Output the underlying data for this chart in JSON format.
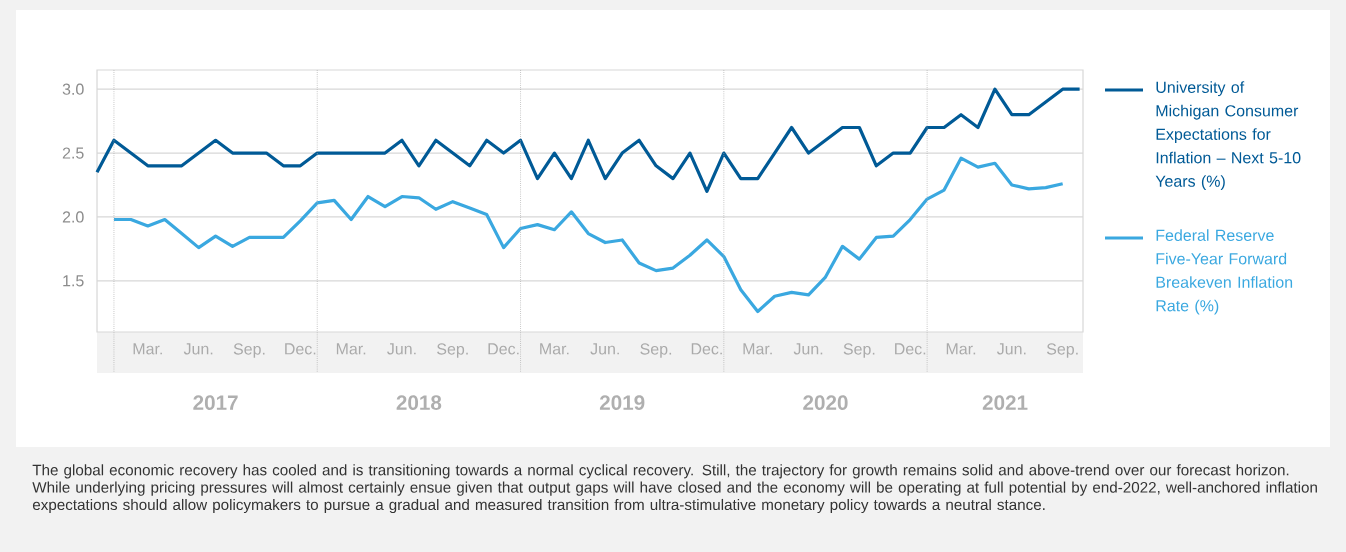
{
  "chart_data": {
    "type": "line",
    "x": [
      "2016-12",
      "2017-01",
      "2017-02",
      "2017-03",
      "2017-04",
      "2017-05",
      "2017-06",
      "2017-07",
      "2017-08",
      "2017-09",
      "2017-10",
      "2017-11",
      "2017-12",
      "2018-01",
      "2018-02",
      "2018-03",
      "2018-04",
      "2018-05",
      "2018-06",
      "2018-07",
      "2018-08",
      "2018-09",
      "2018-10",
      "2018-11",
      "2018-12",
      "2019-01",
      "2019-02",
      "2019-03",
      "2019-04",
      "2019-05",
      "2019-06",
      "2019-07",
      "2019-08",
      "2019-09",
      "2019-10",
      "2019-11",
      "2019-12",
      "2020-01",
      "2020-02",
      "2020-03",
      "2020-04",
      "2020-05",
      "2020-06",
      "2020-07",
      "2020-08",
      "2020-09",
      "2020-10",
      "2020-11",
      "2020-12",
      "2021-01",
      "2021-02",
      "2021-03",
      "2021-04",
      "2021-05",
      "2021-06",
      "2021-07",
      "2021-08",
      "2021-09",
      "2021-10"
    ],
    "series": [
      {
        "name": "University of Michigan Consumer Expectations for Inflation – Next 5-10 Years (%)",
        "color": "#005a96",
        "values": [
          2.35,
          2.6,
          2.5,
          2.4,
          2.4,
          2.4,
          2.5,
          2.6,
          2.5,
          2.5,
          2.5,
          2.4,
          2.4,
          2.5,
          2.5,
          2.5,
          2.5,
          2.5,
          2.6,
          2.4,
          2.6,
          2.5,
          2.4,
          2.6,
          2.5,
          2.6,
          2.3,
          2.5,
          2.3,
          2.6,
          2.3,
          2.5,
          2.6,
          2.4,
          2.3,
          2.5,
          2.2,
          2.5,
          2.3,
          2.3,
          2.5,
          2.7,
          2.5,
          2.6,
          2.7,
          2.7,
          2.4,
          2.5,
          2.5,
          2.7,
          2.7,
          2.8,
          2.7,
          3.0,
          2.8,
          2.8,
          2.9,
          3.0,
          3.0
        ]
      },
      {
        "name": "Federal Reserve Five-Year Forward Breakeven Inflation Rate (%)",
        "color": "#3aa8e0",
        "values": [
          null,
          1.98,
          1.98,
          1.93,
          1.98,
          1.87,
          1.76,
          1.85,
          1.77,
          1.84,
          1.84,
          1.84,
          1.97,
          2.11,
          2.13,
          1.98,
          2.16,
          2.08,
          2.16,
          2.15,
          2.06,
          2.12,
          2.07,
          2.02,
          1.76,
          1.91,
          1.94,
          1.9,
          2.04,
          1.87,
          1.8,
          1.82,
          1.64,
          1.58,
          1.6,
          1.7,
          1.82,
          1.69,
          1.43,
          1.26,
          1.38,
          1.41,
          1.39,
          1.53,
          1.77,
          1.67,
          1.84,
          1.85,
          1.98,
          2.14,
          2.21,
          2.46,
          2.39,
          2.42,
          2.25,
          2.22,
          2.23,
          2.26,
          null
        ]
      }
    ],
    "xlim": [
      "2016-12",
      "2021-10"
    ],
    "xticks": [
      {
        "value": "2017-01",
        "label": null
      },
      {
        "value": "2017-03",
        "label": "Mar."
      },
      {
        "value": "2017-06",
        "label": "Jun."
      },
      {
        "value": "2017-09",
        "label": "Sep."
      },
      {
        "value": "2017-12",
        "label": "Dec."
      },
      {
        "value": "2018-01",
        "label": null
      },
      {
        "value": "2018-03",
        "label": "Mar."
      },
      {
        "value": "2018-06",
        "label": "Jun."
      },
      {
        "value": "2018-09",
        "label": "Sep."
      },
      {
        "value": "2018-12",
        "label": "Dec."
      },
      {
        "value": "2019-01",
        "label": null
      },
      {
        "value": "2019-03",
        "label": "Mar."
      },
      {
        "value": "2019-06",
        "label": "Jun."
      },
      {
        "value": "2019-09",
        "label": "Sep."
      },
      {
        "value": "2019-12",
        "label": "Dec."
      },
      {
        "value": "2020-01",
        "label": null
      },
      {
        "value": "2020-03",
        "label": "Mar."
      },
      {
        "value": "2020-06",
        "label": "Jun."
      },
      {
        "value": "2020-09",
        "label": "Sep."
      },
      {
        "value": "2020-12",
        "label": "Dec."
      },
      {
        "value": "2021-01",
        "label": null
      },
      {
        "value": "2021-03",
        "label": "Mar."
      },
      {
        "value": "2021-06",
        "label": "Jun."
      },
      {
        "value": "2021-09",
        "label": "Sep."
      }
    ],
    "ylim": [
      1.1,
      3.15
    ],
    "yticks": [
      {
        "value": 1.5,
        "label": "1.5"
      },
      {
        "value": 2.0,
        "label": "2.0"
      },
      {
        "value": 2.5,
        "label": "2.5"
      },
      {
        "value": 3.0,
        "label": "3.0"
      }
    ],
    "grid": true,
    "legend": "right",
    "marker": "none",
    "line_style": "solid",
    "annotations": [
      "2017",
      "2018",
      "2019",
      "2020",
      "2021",
      "The global economic recovery has cooled and is transitioning towards a normal cyclical recovery. Still, the trajectory for growth remains solid and above-trend over our forecast horizon. While underlying pricing pressures will almost certainly ensue given that output gaps will have closed and the economy will be operating at full potential by end-2022, well-anchored inflation expectations should allow policymakers to pursue a gradual and measured transition from ultra-stimulative monetary policy towards a neutral stance."
    ]
  }
}
